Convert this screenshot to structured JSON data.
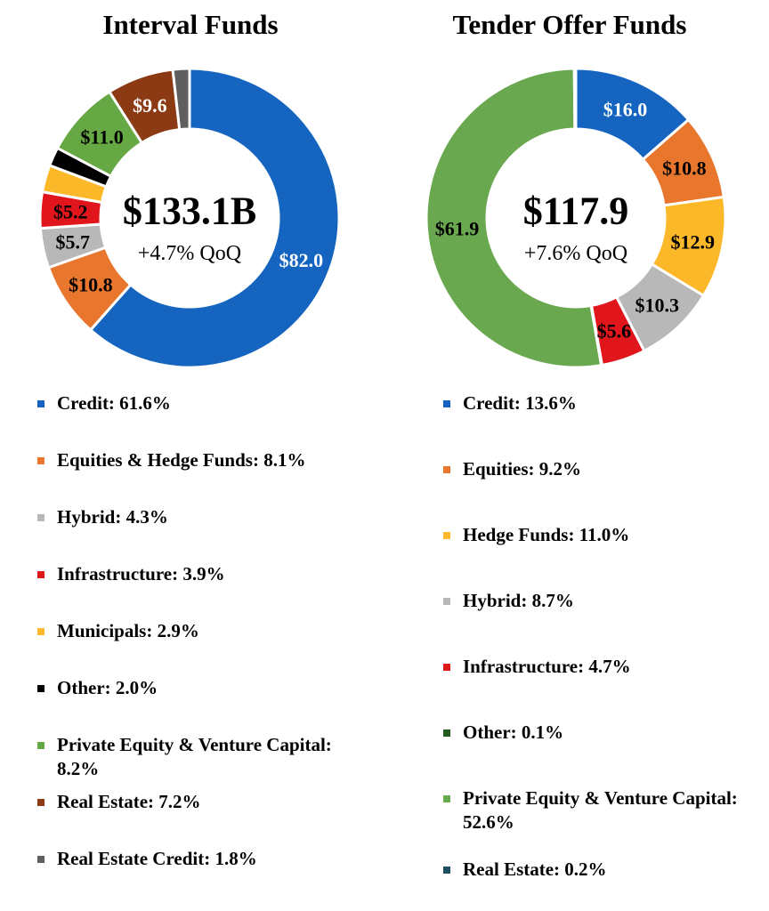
{
  "chart_data": [
    {
      "type": "pie",
      "title": "Interval Funds",
      "center_value": "$133.1B",
      "center_sub": "+4.7% QoQ",
      "slices": [
        {
          "name": "Credit",
          "value": 82.0,
          "label": "$82.0",
          "color": "#1565c0",
          "label_color": "#ffffff"
        },
        {
          "name": "Equities & Hedge Funds",
          "value": 10.8,
          "label": "$10.8",
          "color": "#e8762d",
          "label_color": "#000000"
        },
        {
          "name": "Hybrid",
          "value": 5.7,
          "label": "$5.7",
          "color": "#b8b8b8",
          "label_color": "#000000"
        },
        {
          "name": "Infrastructure",
          "value": 5.2,
          "label": "$5.2",
          "color": "#e0161c",
          "label_color": "#000000"
        },
        {
          "name": "Municipals",
          "value": 3.9,
          "label": "",
          "color": "#fbb829",
          "label_color": "#000000"
        },
        {
          "name": "Other",
          "value": 2.7,
          "label": "",
          "color": "#000000",
          "label_color": "#ffffff"
        },
        {
          "name": "Private Equity & Venture Capital",
          "value": 11.0,
          "label": "$11.0",
          "color": "#66a844",
          "label_color": "#000000"
        },
        {
          "name": "Real Estate",
          "value": 9.6,
          "label": "$9.6",
          "color": "#8b3a14",
          "label_color": "#ffffff"
        },
        {
          "name": "Real Estate Credit",
          "value": 2.4,
          "label": "",
          "color": "#5f5f5f",
          "label_color": "#ffffff"
        }
      ],
      "legend": [
        {
          "text": "Credit: 61.6%",
          "color": "#1565c0"
        },
        {
          "text": "Equities & Hedge Funds: 8.1%",
          "color": "#e8762d"
        },
        {
          "text": "Hybrid: 4.3%",
          "color": "#b8b8b8"
        },
        {
          "text": "Infrastructure: 3.9%",
          "color": "#e0161c"
        },
        {
          "text": "Municipals: 2.9%",
          "color": "#fbb829"
        },
        {
          "text": "Other: 2.0%",
          "color": "#000000"
        },
        {
          "text": "Private Equity & Venture Capital: 8.2%",
          "color": "#66a844"
        },
        {
          "text": "Real Estate: 7.2%",
          "color": "#8b3a14"
        },
        {
          "text": "Real Estate Credit: 1.8%",
          "color": "#5f5f5f"
        }
      ]
    },
    {
      "type": "pie",
      "title": "Tender Offer Funds",
      "center_value": "$117.9",
      "center_sub": "+7.6% QoQ",
      "slices": [
        {
          "name": "Credit",
          "value": 16.0,
          "label": "$16.0",
          "color": "#1565c0",
          "label_color": "#ffffff"
        },
        {
          "name": "Equities",
          "value": 10.8,
          "label": "$10.8",
          "color": "#e8762d",
          "label_color": "#000000"
        },
        {
          "name": "Hedge Funds",
          "value": 12.9,
          "label": "$12.9",
          "color": "#fbb829",
          "label_color": "#000000"
        },
        {
          "name": "Hybrid",
          "value": 10.3,
          "label": "$10.3",
          "color": "#b8b8b8",
          "label_color": "#000000"
        },
        {
          "name": "Infrastructure",
          "value": 5.6,
          "label": "$5.6",
          "color": "#e0161c",
          "label_color": "#000000"
        },
        {
          "name": "Other",
          "value": 0.1,
          "label": "",
          "color": "#245c1f",
          "label_color": "#ffffff"
        },
        {
          "name": "Private Equity & Venture Capital",
          "value": 61.9,
          "label": "$61.9",
          "color": "#6aa84f",
          "label_color": "#000000"
        },
        {
          "name": "Real Estate",
          "value": 0.2,
          "label": "",
          "color": "#1f4e5f",
          "label_color": "#ffffff"
        }
      ],
      "legend": [
        {
          "text": "Credit: 13.6%",
          "color": "#1565c0"
        },
        {
          "text": "Equities: 9.2%",
          "color": "#e8762d"
        },
        {
          "text": "Hedge Funds: 11.0%",
          "color": "#fbb829"
        },
        {
          "text": "Hybrid: 8.7%",
          "color": "#b8b8b8"
        },
        {
          "text": "Infrastructure: 4.7%",
          "color": "#e0161c"
        },
        {
          "text": "Other: 0.1%",
          "color": "#245c1f"
        },
        {
          "text": "Private Equity & Venture Capital: 52.6%",
          "color": "#6aa84f"
        },
        {
          "text": "Real Estate: 0.2%",
          "color": "#1f4e5f"
        }
      ]
    }
  ]
}
